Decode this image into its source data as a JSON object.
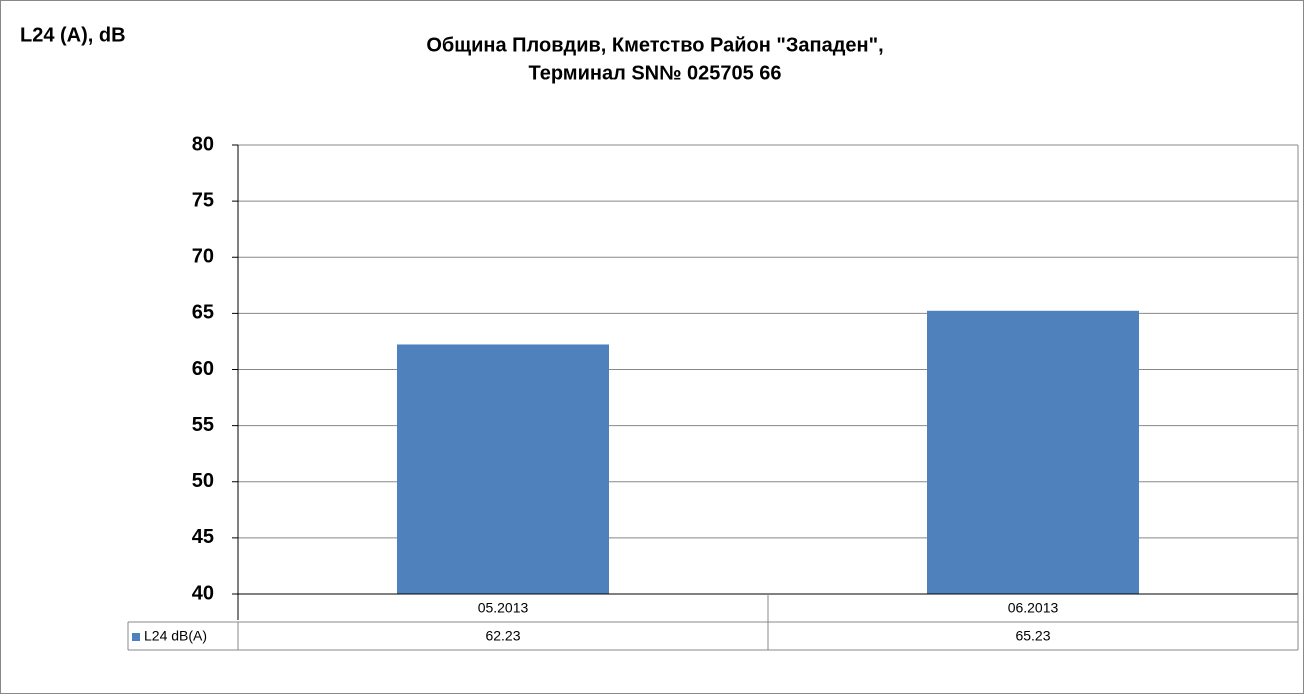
{
  "chart_data": {
    "type": "bar",
    "title": [
      "Община Пловдив, Кметство Район \"Западен\",",
      "Терминал SN№ 025705 66"
    ],
    "y_axis_label": "L24 (A), dB",
    "categories": [
      "05.2013",
      "06.2013"
    ],
    "series": [
      {
        "name": "L24 dB(A)",
        "color": "#4f81bd",
        "values": [
          62.23,
          65.23
        ]
      }
    ],
    "ylim": [
      40,
      80
    ],
    "yticks": [
      40,
      45,
      50,
      55,
      60,
      65,
      70,
      75,
      80
    ],
    "grid": true,
    "data_table": true
  }
}
